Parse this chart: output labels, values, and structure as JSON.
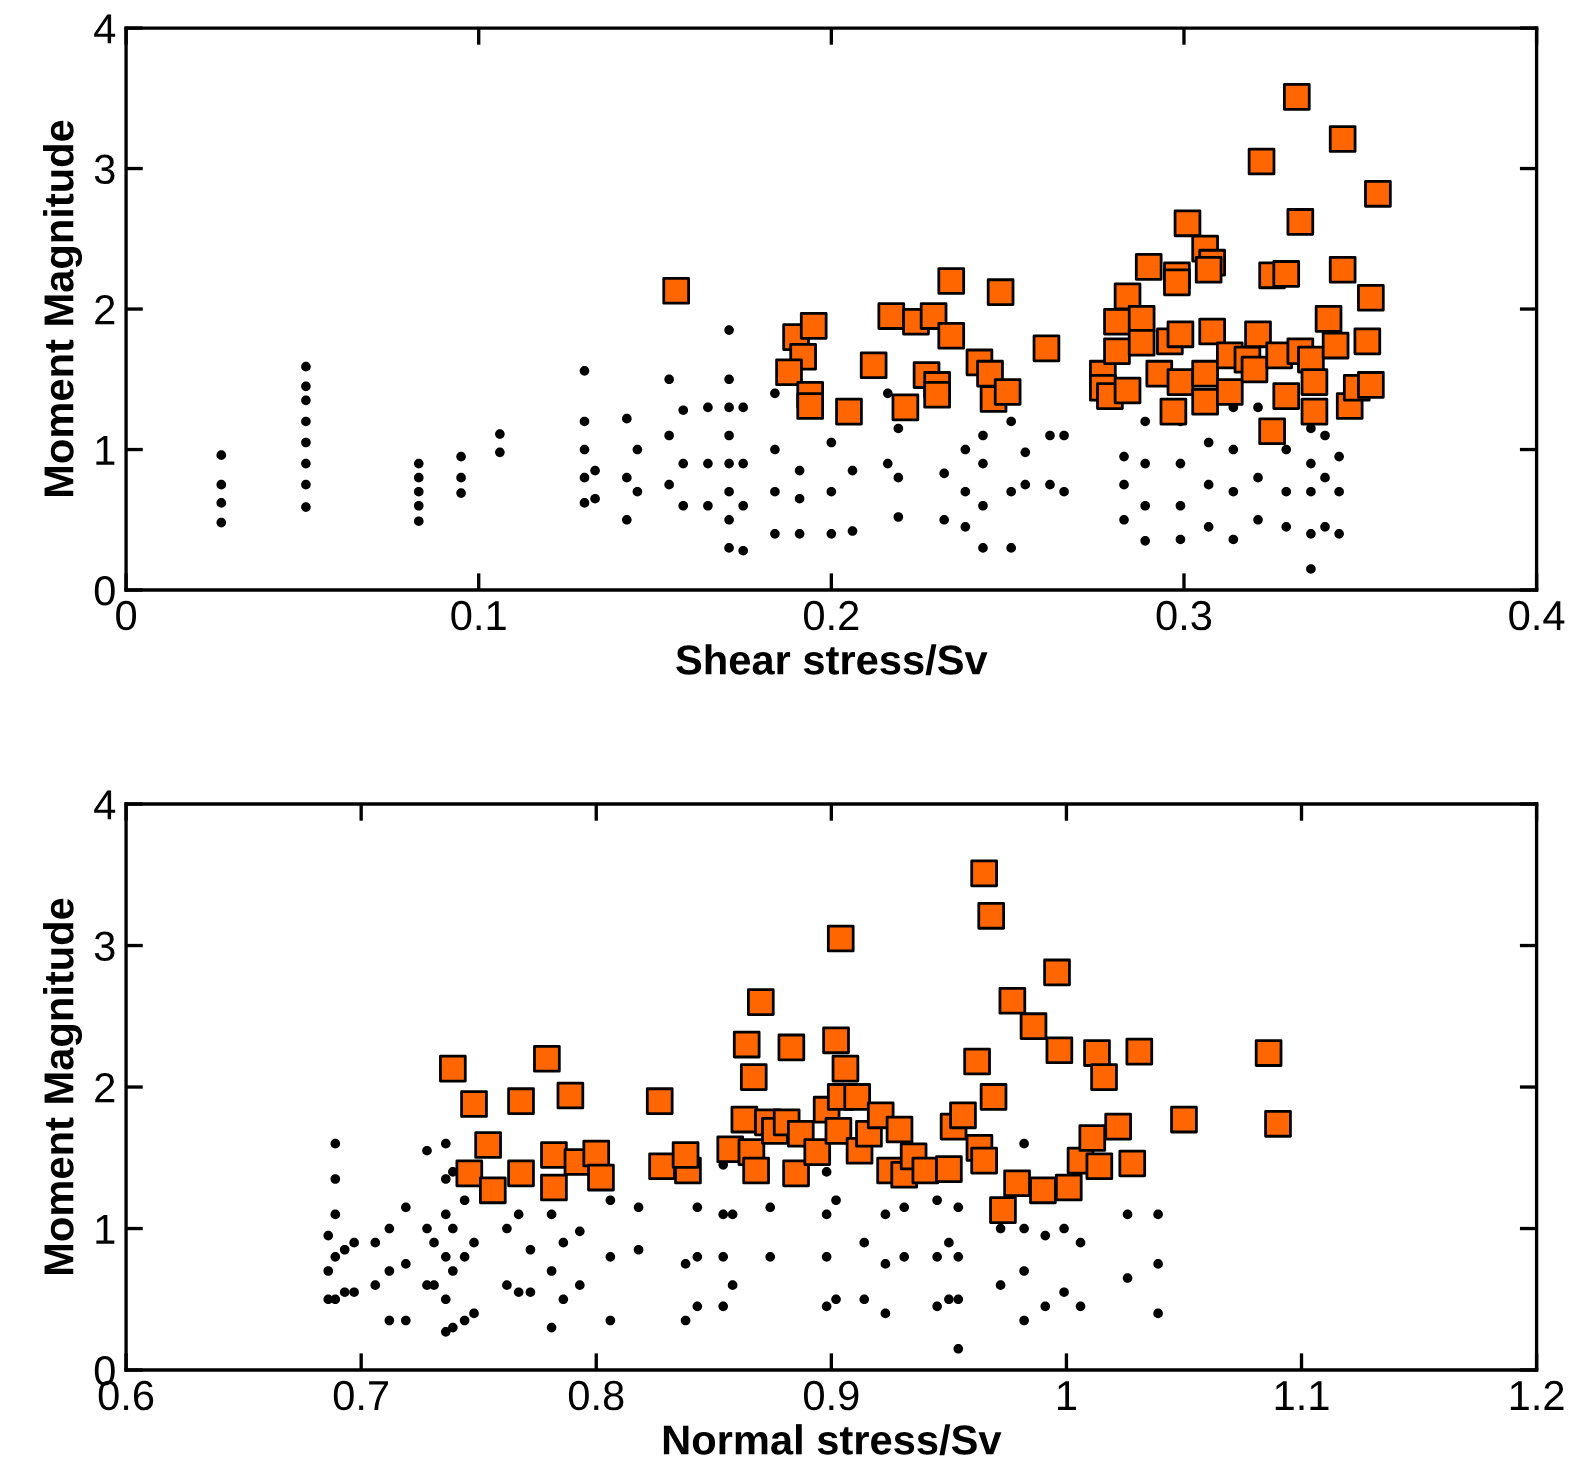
{
  "chart_data": [
    {
      "type": "scatter",
      "xlabel": "Shear stress/Sv",
      "ylabel": "Moment Magnitude",
      "xlim": [
        0,
        0.4
      ],
      "ylim": [
        0,
        4
      ],
      "xticks": [
        0,
        0.1,
        0.2,
        0.3,
        0.4
      ],
      "yticks": [
        0,
        1,
        2,
        3,
        4
      ],
      "grid": false,
      "legend": false,
      "series": [
        {
          "color": "#000000",
          "marker": "circle",
          "x": [
            0.027,
            0.027,
            0.027,
            0.027,
            0.051,
            0.051,
            0.051,
            0.051,
            0.051,
            0.051,
            0.051,
            0.051,
            0.083,
            0.083,
            0.083,
            0.083,
            0.083,
            0.095,
            0.095,
            0.095,
            0.106,
            0.106,
            0.13,
            0.13,
            0.13,
            0.13,
            0.13,
            0.133,
            0.133,
            0.142,
            0.142,
            0.142,
            0.145,
            0.145,
            0.154,
            0.154,
            0.154,
            0.158,
            0.158,
            0.158,
            0.165,
            0.165,
            0.165,
            0.171,
            0.171,
            0.171,
            0.171,
            0.171,
            0.171,
            0.171,
            0.171,
            0.175,
            0.175,
            0.175,
            0.175,
            0.184,
            0.184,
            0.184,
            0.184,
            0.191,
            0.191,
            0.191,
            0.2,
            0.2,
            0.2,
            0.206,
            0.206,
            0.216,
            0.216,
            0.219,
            0.219,
            0.219,
            0.232,
            0.232,
            0.238,
            0.238,
            0.238,
            0.243,
            0.243,
            0.243,
            0.243,
            0.251,
            0.251,
            0.251,
            0.255,
            0.255,
            0.262,
            0.262,
            0.266,
            0.266,
            0.283,
            0.283,
            0.283,
            0.289,
            0.289,
            0.289,
            0.289,
            0.299,
            0.299,
            0.299,
            0.299,
            0.307,
            0.307,
            0.307,
            0.314,
            0.314,
            0.314,
            0.314,
            0.321,
            0.321,
            0.321,
            0.329,
            0.329,
            0.329,
            0.336,
            0.336,
            0.336,
            0.336,
            0.336,
            0.34,
            0.34,
            0.34,
            0.344,
            0.344,
            0.344
          ],
          "values": [
            0.48,
            0.62,
            0.75,
            0.96,
            0.59,
            0.75,
            0.9,
            1.05,
            1.2,
            1.35,
            1.45,
            1.59,
            0.49,
            0.6,
            0.7,
            0.8,
            0.9,
            0.69,
            0.8,
            0.95,
            0.98,
            1.11,
            0.62,
            0.8,
            1.0,
            1.2,
            1.56,
            0.65,
            0.85,
            0.5,
            0.8,
            1.22,
            0.7,
            1.0,
            0.75,
            1.1,
            1.5,
            0.6,
            0.9,
            1.28,
            0.6,
            0.9,
            1.3,
            0.3,
            0.5,
            0.7,
            0.9,
            1.1,
            1.3,
            1.5,
            1.85,
            0.28,
            0.6,
            0.9,
            1.3,
            0.4,
            0.7,
            1.0,
            1.4,
            0.4,
            0.65,
            0.85,
            0.4,
            0.7,
            1.05,
            0.42,
            0.85,
            0.9,
            1.4,
            0.52,
            0.8,
            1.15,
            0.5,
            0.83,
            0.45,
            0.7,
            1.0,
            0.3,
            0.6,
            0.9,
            1.1,
            0.3,
            0.7,
            1.2,
            0.75,
            0.98,
            0.75,
            1.1,
            0.7,
            1.1,
            0.5,
            0.75,
            0.95,
            0.35,
            0.6,
            0.9,
            1.2,
            0.36,
            0.6,
            0.9,
            1.2,
            0.45,
            0.75,
            1.05,
            0.36,
            0.7,
            1.0,
            1.3,
            0.5,
            0.8,
            1.3,
            0.45,
            0.7,
            1.0,
            0.15,
            0.4,
            0.7,
            0.9,
            1.15,
            0.45,
            0.8,
            1.1,
            0.4,
            0.7,
            0.95
          ]
        },
        {
          "color": "#ff6600",
          "marker": "square",
          "x": [
            0.156,
            0.19,
            0.195,
            0.192,
            0.188,
            0.194,
            0.194,
            0.205,
            0.212,
            0.217,
            0.224,
            0.229,
            0.234,
            0.234,
            0.227,
            0.23,
            0.23,
            0.221,
            0.242,
            0.245,
            0.246,
            0.25,
            0.248,
            0.261,
            0.277,
            0.277,
            0.279,
            0.281,
            0.281,
            0.284,
            0.288,
            0.284,
            0.288,
            0.29,
            0.293,
            0.296,
            0.299,
            0.298,
            0.298,
            0.297,
            0.299,
            0.301,
            0.306,
            0.308,
            0.307,
            0.308,
            0.306,
            0.306,
            0.313,
            0.313,
            0.318,
            0.321,
            0.32,
            0.322,
            0.325,
            0.329,
            0.325,
            0.327,
            0.333,
            0.332,
            0.333,
            0.329,
            0.336,
            0.337,
            0.337,
            0.341,
            0.343,
            0.345,
            0.345,
            0.347,
            0.349,
            0.352,
            0.353,
            0.353,
            0.355
          ],
          "values": [
            2.13,
            1.8,
            1.88,
            1.66,
            1.55,
            1.39,
            1.31,
            1.27,
            1.6,
            1.95,
            1.91,
            1.95,
            2.2,
            1.81,
            1.53,
            1.46,
            1.39,
            1.3,
            1.62,
            1.54,
            1.36,
            1.41,
            2.12,
            1.72,
            1.54,
            1.44,
            1.38,
            1.7,
            1.91,
            2.09,
            1.93,
            1.42,
            1.76,
            2.3,
            1.54,
            1.77,
            1.82,
            2.24,
            2.19,
            1.27,
            1.48,
            2.61,
            2.43,
            2.33,
            2.28,
            1.84,
            1.54,
            1.34,
            1.67,
            1.41,
            1.64,
            1.82,
            1.57,
            3.05,
            2.24,
            2.25,
            1.13,
            1.67,
            1.7,
            3.51,
            2.62,
            1.38,
            1.64,
            1.48,
            1.27,
            1.93,
            1.74,
            3.21,
            2.28,
            1.31,
            1.44,
            1.77,
            2.08,
            1.46,
            2.82
          ]
        }
      ]
    },
    {
      "type": "scatter",
      "xlabel": "Normal stress/Sv",
      "ylabel": "Moment Magnitude",
      "xlim": [
        0.6,
        1.2
      ],
      "ylim": [
        0,
        4
      ],
      "xticks": [
        0.6,
        0.7,
        0.8,
        0.9,
        1,
        1.1,
        1.2
      ],
      "yticks": [
        0,
        1,
        2,
        3,
        4
      ],
      "grid": false,
      "legend": false,
      "series": [
        {
          "color": "#000000",
          "marker": "circle",
          "x": [
            0.686,
            0.686,
            0.686,
            0.689,
            0.689,
            0.689,
            0.689,
            0.689,
            0.693,
            0.693,
            0.697,
            0.697,
            0.706,
            0.706,
            0.712,
            0.712,
            0.712,
            0.719,
            0.719,
            0.719,
            0.728,
            0.728,
            0.728,
            0.731,
            0.731,
            0.736,
            0.736,
            0.736,
            0.736,
            0.736,
            0.736,
            0.739,
            0.739,
            0.739,
            0.739,
            0.744,
            0.744,
            0.744,
            0.748,
            0.748,
            0.762,
            0.762,
            0.767,
            0.767,
            0.772,
            0.772,
            0.781,
            0.781,
            0.781,
            0.786,
            0.786,
            0.793,
            0.793,
            0.806,
            0.806,
            0.806,
            0.818,
            0.818,
            0.838,
            0.838,
            0.843,
            0.843,
            0.843,
            0.854,
            0.854,
            0.854,
            0.854,
            0.858,
            0.858,
            0.874,
            0.874,
            0.898,
            0.898,
            0.898,
            0.898,
            0.902,
            0.902,
            0.914,
            0.914,
            0.923,
            0.923,
            0.923,
            0.931,
            0.931,
            0.945,
            0.945,
            0.945,
            0.95,
            0.95,
            0.954,
            0.954,
            0.954,
            0.954,
            0.972,
            0.972,
            0.982,
            0.982,
            0.982,
            0.982,
            0.991,
            0.991,
            0.999,
            0.999,
            1.006,
            1.006,
            1.026,
            1.026,
            1.039,
            1.039,
            1.039
          ],
          "values": [
            0.5,
            0.7,
            0.95,
            0.5,
            0.8,
            1.1,
            1.35,
            1.6,
            0.55,
            0.85,
            0.55,
            0.9,
            0.6,
            0.9,
            0.35,
            0.7,
            1.0,
            0.35,
            0.75,
            1.15,
            0.6,
            1.0,
            1.55,
            0.6,
            0.9,
            0.27,
            0.5,
            0.8,
            1.1,
            1.35,
            1.6,
            0.3,
            0.7,
            1.0,
            1.4,
            0.35,
            0.8,
            1.2,
            0.4,
            0.9,
            0.6,
            1.0,
            0.55,
            1.1,
            0.55,
            0.85,
            0.3,
            0.7,
            1.1,
            0.5,
            0.9,
            0.6,
            0.98,
            0.35,
            0.8,
            1.2,
            0.85,
            1.15,
            0.35,
            0.75,
            0.45,
            0.8,
            1.15,
            0.45,
            0.8,
            1.1,
            1.45,
            0.6,
            1.1,
            0.8,
            1.15,
            0.45,
            0.8,
            1.1,
            1.4,
            0.5,
            1.2,
            0.5,
            0.9,
            0.4,
            0.75,
            1.1,
            0.8,
            1.15,
            0.45,
            0.8,
            1.2,
            0.5,
            0.9,
            0.15,
            0.5,
            0.8,
            1.15,
            0.6,
            1.0,
            0.35,
            0.7,
            1.0,
            1.6,
            0.45,
            0.95,
            0.55,
            1.0,
            0.45,
            0.9,
            0.65,
            1.1,
            0.4,
            0.75,
            1.1
          ]
        },
        {
          "color": "#ff6600",
          "marker": "square",
          "x": [
            0.739,
            0.748,
            0.754,
            0.746,
            0.756,
            0.768,
            0.768,
            0.779,
            0.782,
            0.782,
            0.789,
            0.792,
            0.8,
            0.802,
            0.827,
            0.828,
            0.839,
            0.838,
            0.857,
            0.864,
            0.87,
            0.867,
            0.863,
            0.866,
            0.868,
            0.873,
            0.876,
            0.881,
            0.883,
            0.885,
            0.887,
            0.894,
            0.898,
            0.902,
            0.904,
            0.906,
            0.903,
            0.904,
            0.911,
            0.912,
            0.916,
            0.921,
            0.929,
            0.925,
            0.931,
            0.935,
            0.94,
            0.95,
            0.952,
            0.956,
            0.962,
            0.963,
            0.965,
            0.965,
            0.968,
            0.969,
            0.973,
            0.977,
            0.979,
            0.986,
            0.99,
            0.996,
            0.997,
            1.001,
            1.006,
            1.011,
            1.013,
            1.014,
            1.016,
            1.022,
            1.028,
            1.031,
            1.05,
            1.086,
            1.09
          ],
          "values": [
            2.13,
            1.88,
            1.59,
            1.39,
            1.27,
            1.9,
            1.39,
            2.2,
            1.52,
            1.29,
            1.94,
            1.47,
            1.53,
            1.36,
            1.9,
            1.44,
            1.41,
            1.52,
            1.56,
            2.3,
            2.6,
            2.07,
            1.77,
            1.54,
            1.41,
            1.75,
            1.69,
            1.75,
            2.28,
            1.39,
            1.67,
            1.54,
            1.84,
            2.33,
            3.05,
            2.13,
            1.69,
            1.93,
            1.93,
            1.55,
            1.67,
            1.8,
            1.7,
            1.41,
            1.38,
            1.51,
            1.41,
            1.42,
            1.72,
            1.8,
            2.18,
            1.57,
            1.48,
            3.51,
            3.21,
            1.93,
            1.13,
            2.61,
            1.32,
            2.43,
            1.27,
            2.81,
            2.26,
            1.29,
            1.48,
            1.64,
            2.24,
            1.44,
            2.07,
            1.72,
            1.46,
            2.25,
            1.77,
            2.24,
            1.74
          ]
        }
      ]
    }
  ]
}
